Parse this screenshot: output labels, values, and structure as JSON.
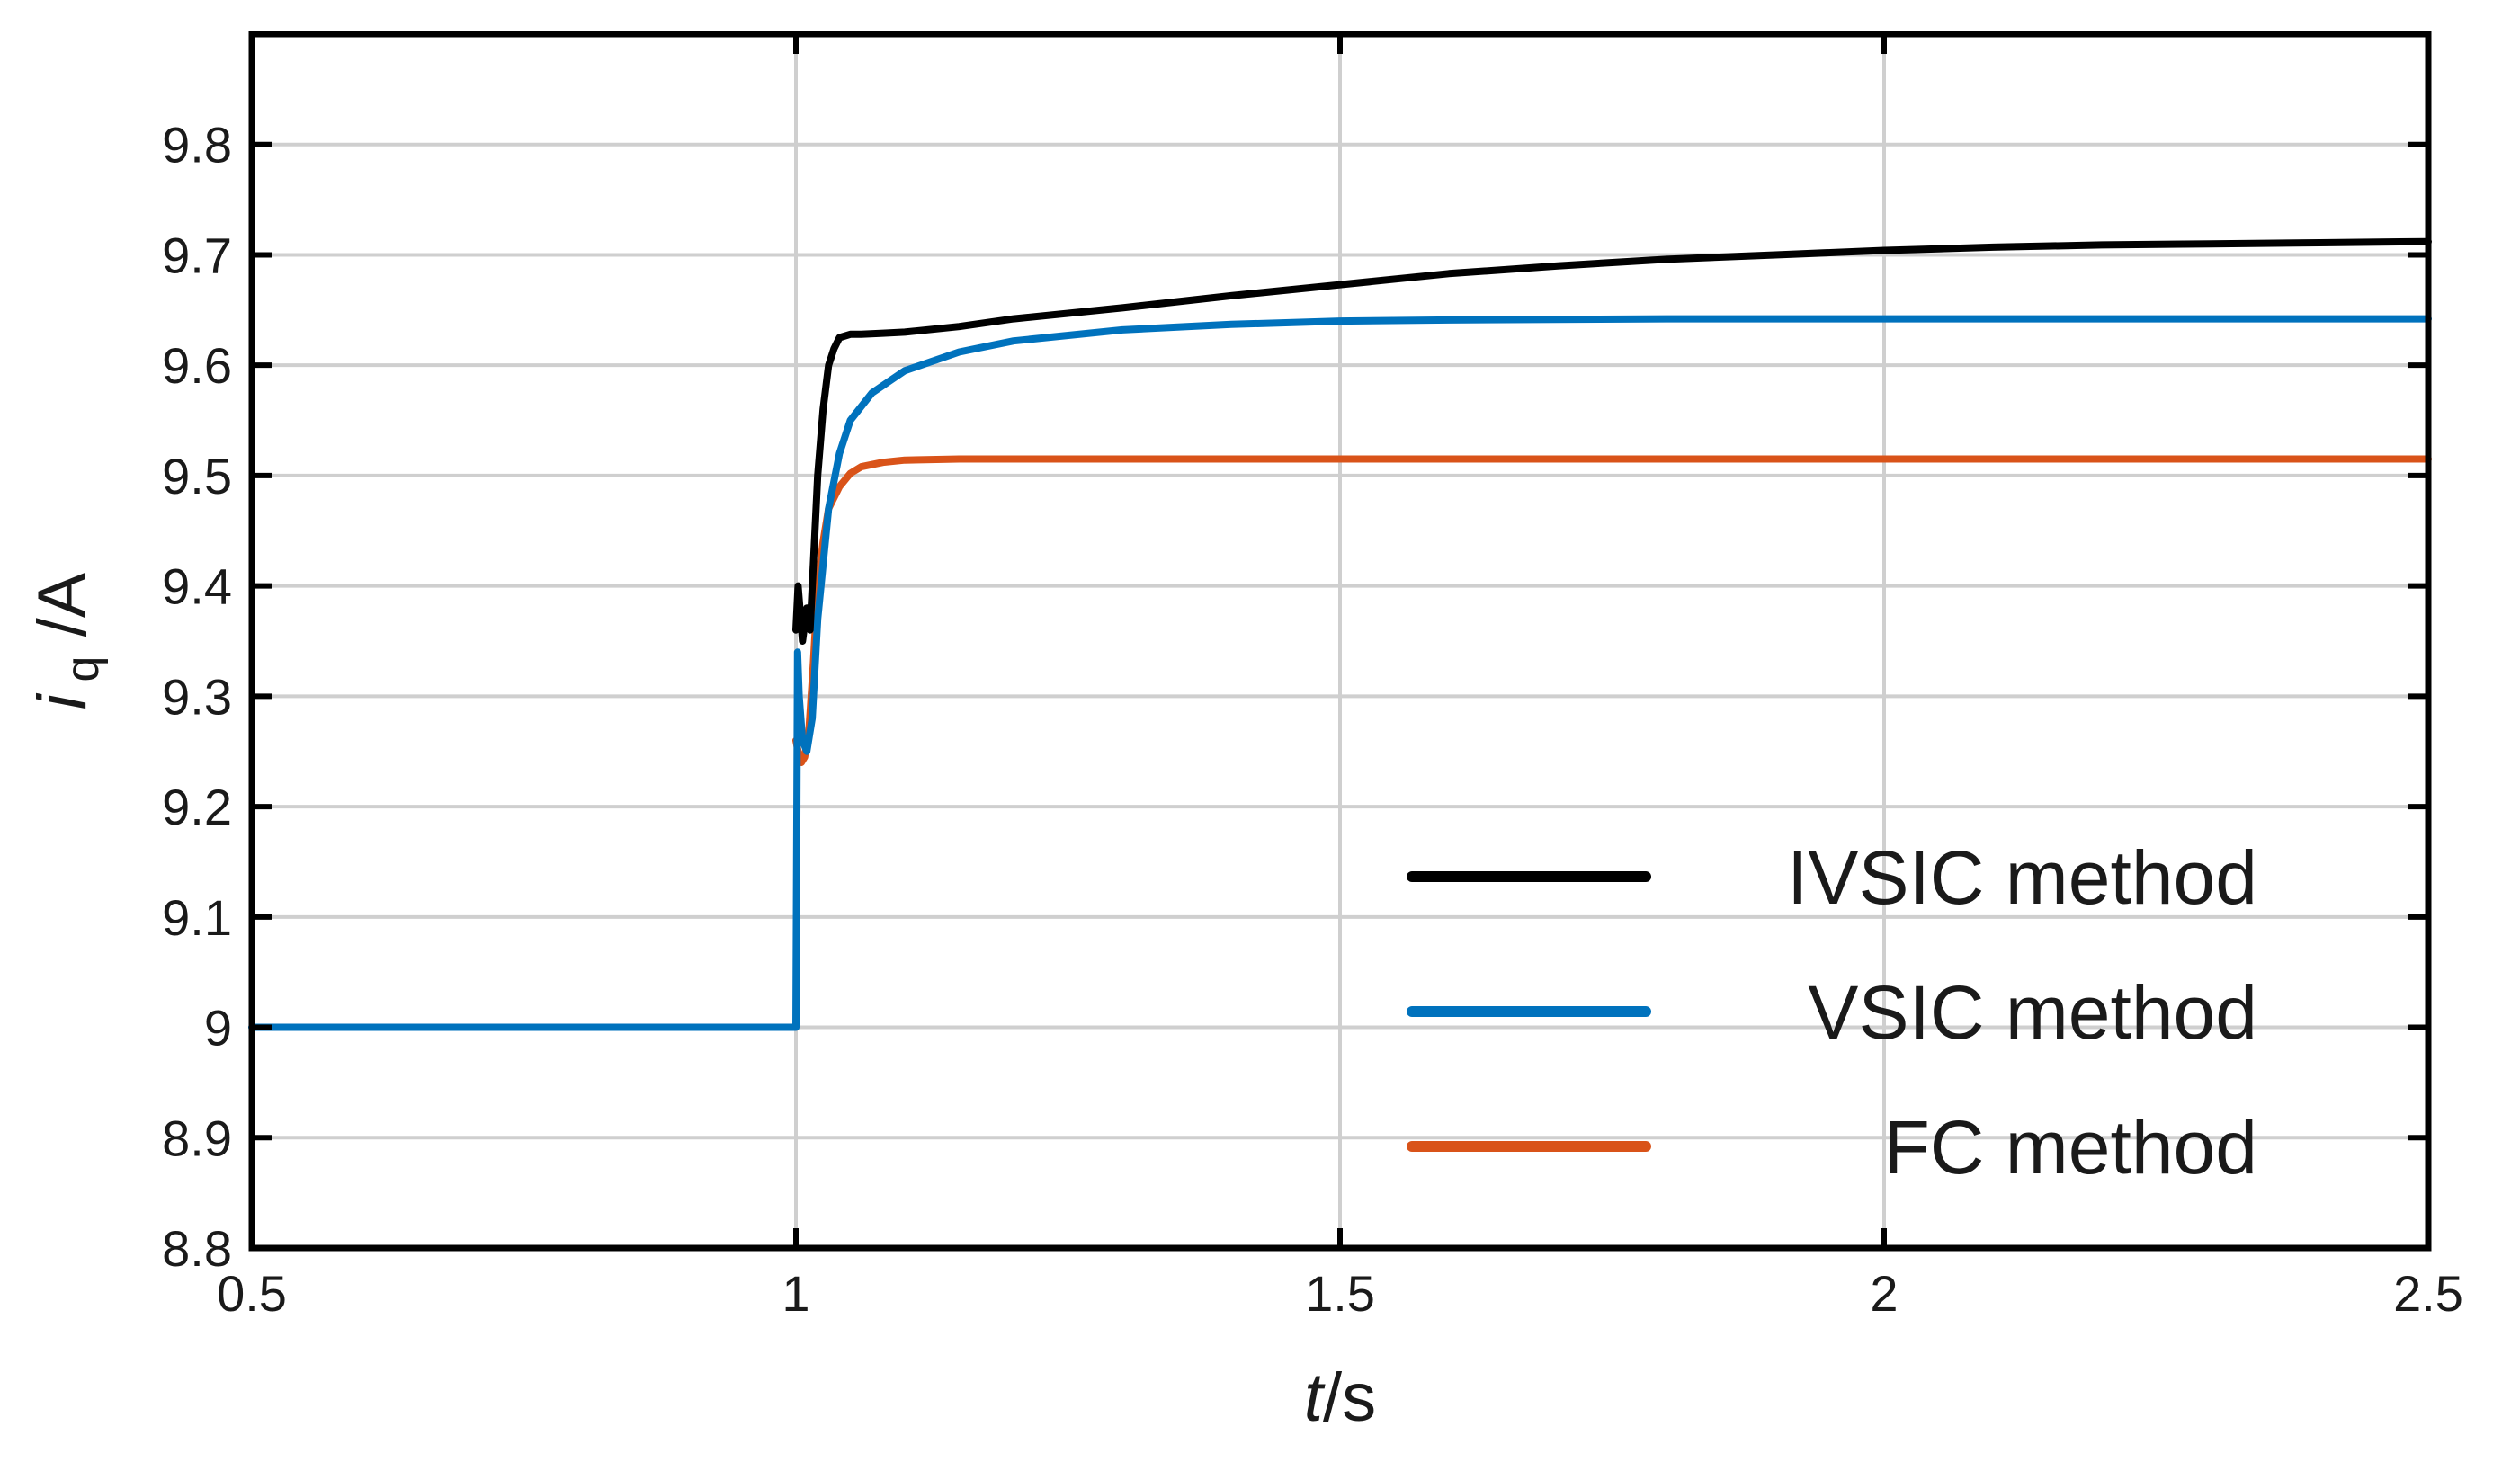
{
  "chart_data": {
    "type": "line",
    "xlabel_italic": "t",
    "xlabel_unit": "/s",
    "ylabel_var": "i",
    "ylabel_sub": "q",
    "ylabel_unit": " /A",
    "xlim": [
      0.5,
      2.5
    ],
    "ylim": [
      8.8,
      9.9
    ],
    "xticks": [
      "0.5",
      "1",
      "1.5",
      "2",
      "2.5"
    ],
    "xtick_values": [
      0.5,
      1,
      1.5,
      2,
      2.5
    ],
    "yticks": [
      "8.8",
      "8.9",
      "9",
      "9.1",
      "9.2",
      "9.3",
      "9.4",
      "9.5",
      "9.6",
      "9.7",
      "9.8"
    ],
    "ytick_values": [
      8.8,
      8.9,
      9.0,
      9.1,
      9.2,
      9.3,
      9.4,
      9.5,
      9.6,
      9.7,
      9.8
    ],
    "grid": true,
    "legend_position": "bottom-right",
    "series": [
      {
        "name": "IVSIC method",
        "color": "#000000",
        "x": [
          1.0,
          1.002,
          1.006,
          1.01,
          1.013,
          1.016,
          1.02,
          1.025,
          1.03,
          1.035,
          1.04,
          1.05,
          1.06,
          1.08,
          1.1,
          1.15,
          1.2,
          1.3,
          1.4,
          1.5,
          1.6,
          1.7,
          1.8,
          1.9,
          2.0,
          2.1,
          2.2,
          2.3,
          2.4,
          2.5
        ],
        "y": [
          9.36,
          9.4,
          9.35,
          9.38,
          9.36,
          9.42,
          9.5,
          9.56,
          9.6,
          9.615,
          9.625,
          9.628,
          9.628,
          9.629,
          9.63,
          9.635,
          9.642,
          9.652,
          9.663,
          9.673,
          9.683,
          9.69,
          9.696,
          9.7,
          9.704,
          9.707,
          9.709,
          9.71,
          9.711,
          9.712
        ]
      },
      {
        "name": "VSIC method",
        "color": "#0072BD",
        "x": [
          0.5,
          0.999,
          1.0,
          1.0015,
          1.003,
          1.006,
          1.01,
          1.015,
          1.02,
          1.03,
          1.04,
          1.05,
          1.07,
          1.1,
          1.15,
          1.2,
          1.3,
          1.4,
          1.5,
          1.6,
          1.8,
          2.0,
          2.2,
          2.5
        ],
        "y": [
          9.0,
          9.0,
          9.0,
          9.34,
          9.3,
          9.26,
          9.25,
          9.28,
          9.37,
          9.47,
          9.52,
          9.55,
          9.575,
          9.595,
          9.612,
          9.622,
          9.632,
          9.637,
          9.64,
          9.641,
          9.642,
          9.642,
          9.642,
          9.642
        ]
      },
      {
        "name": "FC method",
        "color": "#D95319",
        "x": [
          1.0,
          1.002,
          1.005,
          1.008,
          1.012,
          1.016,
          1.02,
          1.025,
          1.03,
          1.04,
          1.05,
          1.06,
          1.08,
          1.1,
          1.15,
          1.2,
          1.5,
          2.0,
          2.5
        ],
        "y": [
          9.26,
          9.25,
          9.24,
          9.245,
          9.27,
          9.33,
          9.4,
          9.44,
          9.47,
          9.49,
          9.502,
          9.508,
          9.512,
          9.514,
          9.515,
          9.515,
          9.515,
          9.515,
          9.515
        ]
      }
    ]
  }
}
